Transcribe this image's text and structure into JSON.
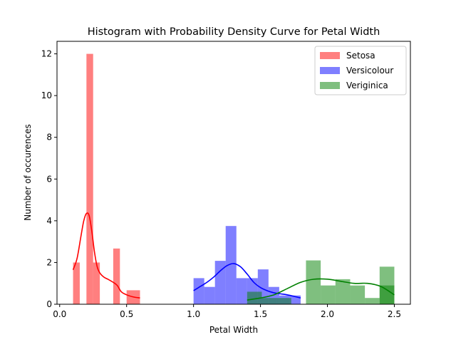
{
  "chart_data": {
    "type": "histogram",
    "title": "Histogram with Probability Density Curve for Petal Width",
    "xlabel": "Petal Width",
    "ylabel": "Number of occurences",
    "xlim": [
      -0.02,
      2.62
    ],
    "ylim": [
      0,
      12.6
    ],
    "xticks": [
      0.0,
      0.5,
      1.0,
      1.5,
      2.0,
      2.5
    ],
    "xtick_labels": [
      "0.0",
      "0.5",
      "1.0",
      "1.5",
      "2.0",
      "2.5"
    ],
    "yticks": [
      0,
      2,
      4,
      6,
      8,
      10,
      12
    ],
    "ytick_labels": [
      "0",
      "2",
      "4",
      "6",
      "8",
      "10",
      "12"
    ],
    "grid": false,
    "legend_position": "top-right",
    "series": [
      {
        "name": "Setosa",
        "color": "#ff0000",
        "bar_alpha": 0.5,
        "bins": [
          {
            "x0": 0.1,
            "x1": 0.15,
            "count": 2
          },
          {
            "x0": 0.2,
            "x1": 0.25,
            "count": 12
          },
          {
            "x0": 0.25,
            "x1": 0.3,
            "count": 2
          },
          {
            "x0": 0.4,
            "x1": 0.45,
            "count": 2.67
          },
          {
            "x0": 0.5,
            "x1": 0.6,
            "count": 0.67
          }
        ],
        "density_curve": {
          "x": [
            0.1,
            0.13,
            0.16,
            0.18,
            0.2,
            0.22,
            0.24,
            0.26,
            0.28,
            0.3,
            0.33,
            0.36,
            0.4,
            0.43,
            0.46,
            0.5,
            0.55,
            0.6
          ],
          "y": [
            1.65,
            2.2,
            3.3,
            4.0,
            4.35,
            4.25,
            3.5,
            2.5,
            1.8,
            1.5,
            1.3,
            1.2,
            1.05,
            0.9,
            0.6,
            0.45,
            0.35,
            0.3
          ]
        }
      },
      {
        "name": "Versicolour",
        "color": "#0000ff",
        "bar_alpha": 0.5,
        "bins": [
          {
            "x0": 1.0,
            "x1": 1.08,
            "count": 1.25
          },
          {
            "x0": 1.08,
            "x1": 1.16,
            "count": 0.83
          },
          {
            "x0": 1.16,
            "x1": 1.24,
            "count": 2.08
          },
          {
            "x0": 1.24,
            "x1": 1.32,
            "count": 3.75
          },
          {
            "x0": 1.32,
            "x1": 1.4,
            "count": 1.25
          },
          {
            "x0": 1.4,
            "x1": 1.48,
            "count": 1.25
          },
          {
            "x0": 1.48,
            "x1": 1.56,
            "count": 1.67
          },
          {
            "x0": 1.56,
            "x1": 1.64,
            "count": 0.83
          },
          {
            "x0": 1.64,
            "x1": 1.72,
            "count": 0.42
          },
          {
            "x0": 1.72,
            "x1": 1.8,
            "count": 0.42
          }
        ],
        "density_curve": {
          "x": [
            1.0,
            1.05,
            1.1,
            1.15,
            1.2,
            1.25,
            1.3,
            1.35,
            1.4,
            1.45,
            1.5,
            1.55,
            1.6,
            1.65,
            1.7,
            1.75,
            1.8
          ],
          "y": [
            0.65,
            0.85,
            1.05,
            1.3,
            1.6,
            1.85,
            1.95,
            1.8,
            1.45,
            1.05,
            0.8,
            0.65,
            0.55,
            0.5,
            0.45,
            0.38,
            0.3
          ]
        }
      },
      {
        "name": "Veriginica",
        "color": "#008000",
        "bar_alpha": 0.5,
        "bins": [
          {
            "x0": 1.4,
            "x1": 1.51,
            "count": 0.6
          },
          {
            "x0": 1.51,
            "x1": 1.62,
            "count": 0.3
          },
          {
            "x0": 1.62,
            "x1": 1.73,
            "count": 0.3
          },
          {
            "x0": 1.73,
            "x1": 1.84,
            "count": 0.0
          },
          {
            "x0": 1.84,
            "x1": 1.95,
            "count": 2.1
          },
          {
            "x0": 1.95,
            "x1": 2.06,
            "count": 0.9
          },
          {
            "x0": 2.06,
            "x1": 2.17,
            "count": 1.2
          },
          {
            "x0": 2.17,
            "x1": 2.28,
            "count": 0.9
          },
          {
            "x0": 2.28,
            "x1": 2.39,
            "count": 0.3
          },
          {
            "x0": 2.39,
            "x1": 2.5,
            "count": 1.8
          }
        ],
        "extra_bins": [
          {
            "x0": 2.39,
            "x1": 2.5,
            "count": 0.9
          }
        ],
        "density_curve": {
          "x": [
            1.4,
            1.5,
            1.6,
            1.7,
            1.8,
            1.9,
            2.0,
            2.1,
            2.2,
            2.3,
            2.4,
            2.5
          ],
          "y": [
            0.2,
            0.3,
            0.45,
            0.75,
            1.05,
            1.2,
            1.2,
            1.1,
            1.0,
            1.0,
            0.85,
            0.45
          ]
        }
      }
    ]
  }
}
